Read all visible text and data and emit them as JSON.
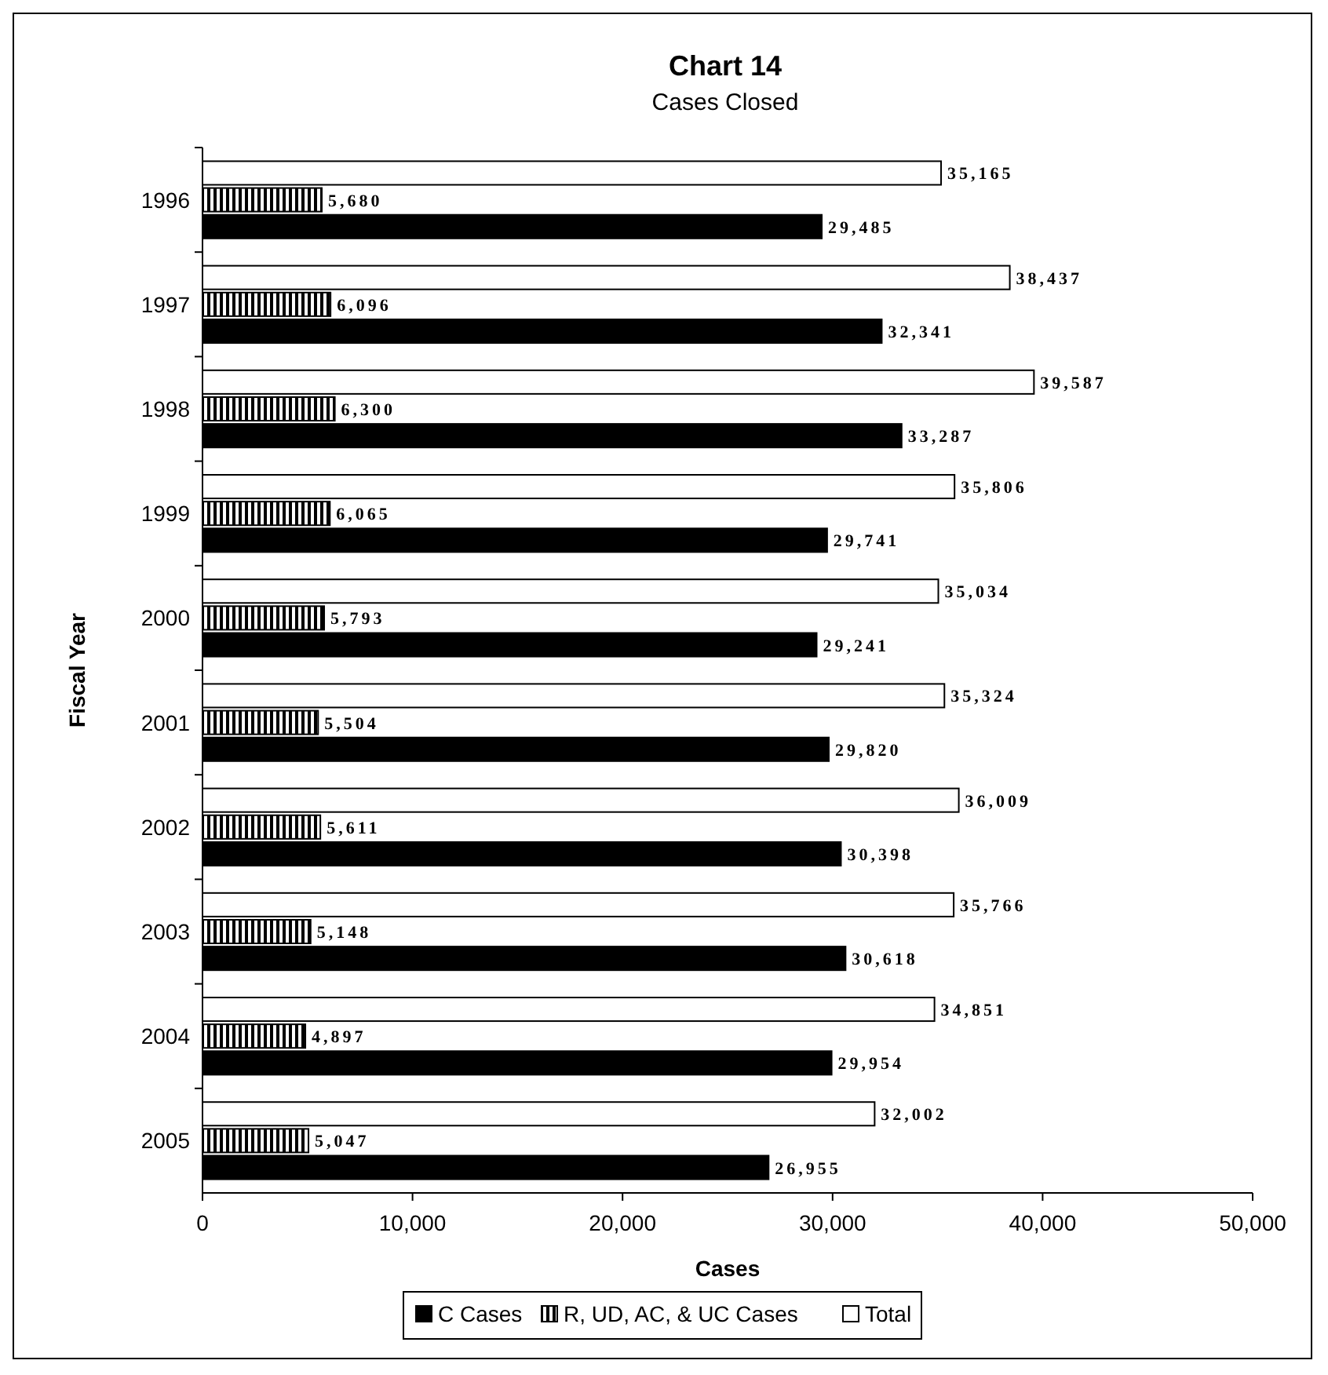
{
  "chart_data": {
    "type": "bar",
    "orientation": "horizontal",
    "title": "Chart 14",
    "subtitle": "Cases Closed",
    "xlabel": "Cases",
    "ylabel": "Fiscal Year",
    "categories": [
      "1996",
      "1997",
      "1998",
      "1999",
      "2000",
      "2001",
      "2002",
      "2003",
      "2004",
      "2005"
    ],
    "series": [
      {
        "name": "C Cases",
        "color": "#000000",
        "values": [
          29485,
          32341,
          33287,
          29741,
          29241,
          29820,
          30398,
          30618,
          29954,
          26955
        ],
        "value_labels": [
          "29,485",
          "32,341",
          "33,287",
          "29,741",
          "29,241",
          "29,820",
          "30,398",
          "30,618",
          "29,954",
          "26,955"
        ]
      },
      {
        "name": "R, UD, AC, & UC Cases",
        "color": "#000000",
        "values": [
          5680,
          6096,
          6300,
          6065,
          5793,
          5504,
          5611,
          5148,
          4897,
          5047
        ],
        "value_labels": [
          "5,680",
          "6,096",
          "6,300",
          "6,065",
          "5,793",
          "5,504",
          "5,611",
          "5,148",
          "4,897",
          "5,047"
        ]
      },
      {
        "name": "Total",
        "color": "#ffffff",
        "values": [
          35165,
          38437,
          39587,
          35806,
          35034,
          35324,
          36009,
          35766,
          34851,
          32002
        ],
        "value_labels": [
          "35,165",
          "38,437",
          "39,587",
          "35,806",
          "35,034",
          "35,324",
          "36,009",
          "35,766",
          "34,851",
          "32,002"
        ]
      }
    ],
    "xlim": [
      0,
      50000
    ],
    "xticks": [
      0,
      {
        "value": 10000,
        "label": "10,000"
      },
      {
        "value": 20000,
        "label": "20,000"
      },
      {
        "value": 30000,
        "label": "30,000"
      },
      {
        "value": 40000,
        "label": "40,000"
      },
      {
        "value": 50000,
        "label": "50,000"
      }
    ],
    "grid": false,
    "legend": "bottom"
  }
}
